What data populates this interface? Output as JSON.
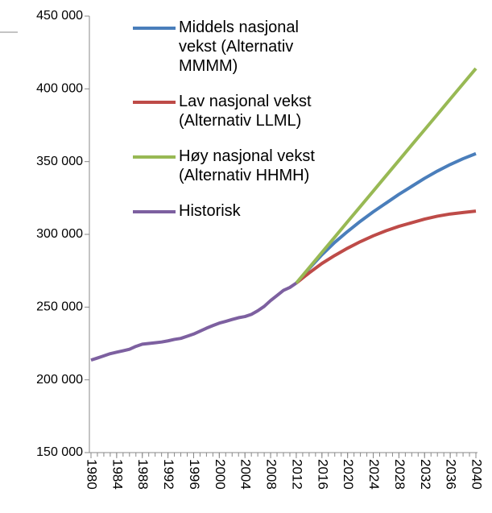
{
  "chart_data": {
    "type": "line",
    "xlim": [
      1980,
      2040
    ],
    "xticks": [
      1980,
      1984,
      1988,
      1992,
      1996,
      2000,
      2004,
      2008,
      2012,
      2016,
      2020,
      2024,
      2028,
      2032,
      2036,
      2040
    ],
    "ylim": [
      150000,
      450000
    ],
    "yticks": [
      {
        "value": 150000,
        "label": "150 000"
      },
      {
        "value": 200000,
        "label": "200 000"
      },
      {
        "value": 250000,
        "label": "250 000"
      },
      {
        "value": 300000,
        "label": "300 000"
      },
      {
        "value": 350000,
        "label": "350 000"
      },
      {
        "value": 400000,
        "label": "400 000"
      },
      {
        "value": 450000,
        "label": "450 000"
      }
    ],
    "legend": "upper left",
    "series": [
      {
        "name": "Middels nasjonal vekst (Alternativ MMMM)",
        "color": "#4a7ebb",
        "x": [
          2012,
          2014,
          2016,
          2018,
          2020,
          2022,
          2024,
          2026,
          2028,
          2030,
          2032,
          2034,
          2036,
          2038,
          2040
        ],
        "values": [
          266500,
          276500,
          286000,
          294500,
          302000,
          309000,
          315500,
          321500,
          327500,
          333000,
          338500,
          343500,
          348000,
          352000,
          355500
        ]
      },
      {
        "name": "Lav nasjonal vekst (Alternativ LLML)",
        "color": "#be4b48",
        "x": [
          2012,
          2014,
          2016,
          2018,
          2020,
          2022,
          2024,
          2026,
          2028,
          2030,
          2032,
          2034,
          2036,
          2038,
          2040
        ],
        "values": [
          266500,
          273500,
          280000,
          285500,
          290500,
          295000,
          299000,
          302500,
          305500,
          308000,
          310500,
          312500,
          314000,
          315000,
          316000
        ]
      },
      {
        "name": "Høy nasjonal vekst (Alternativ HHMH)",
        "color": "#98b954",
        "x": [
          2012,
          2014,
          2016,
          2018,
          2020,
          2022,
          2024,
          2026,
          2028,
          2030,
          2032,
          2034,
          2036,
          2038,
          2040
        ],
        "values": [
          266500,
          277000,
          287600,
          298100,
          308700,
          319200,
          329700,
          340300,
          350800,
          361400,
          371900,
          382400,
          393000,
          403500,
          414000
        ]
      },
      {
        "name": "Historisk",
        "color": "#7d60a0",
        "x": [
          1980,
          1981,
          1982,
          1983,
          1984,
          1985,
          1986,
          1987,
          1988,
          1989,
          1990,
          1991,
          1992,
          1993,
          1994,
          1995,
          1996,
          1997,
          1998,
          1999,
          2000,
          2001,
          2002,
          2003,
          2004,
          2005,
          2006,
          2007,
          2008,
          2009,
          2010,
          2011,
          2012
        ],
        "values": [
          213600,
          215000,
          216500,
          218000,
          219000,
          220000,
          221000,
          223000,
          224500,
          225000,
          225500,
          226000,
          226800,
          227800,
          228500,
          230000,
          231500,
          233500,
          235500,
          237300,
          239000,
          240200,
          241500,
          242700,
          243500,
          245000,
          247500,
          250500,
          254500,
          258000,
          261500,
          263500,
          266500
        ]
      }
    ]
  }
}
